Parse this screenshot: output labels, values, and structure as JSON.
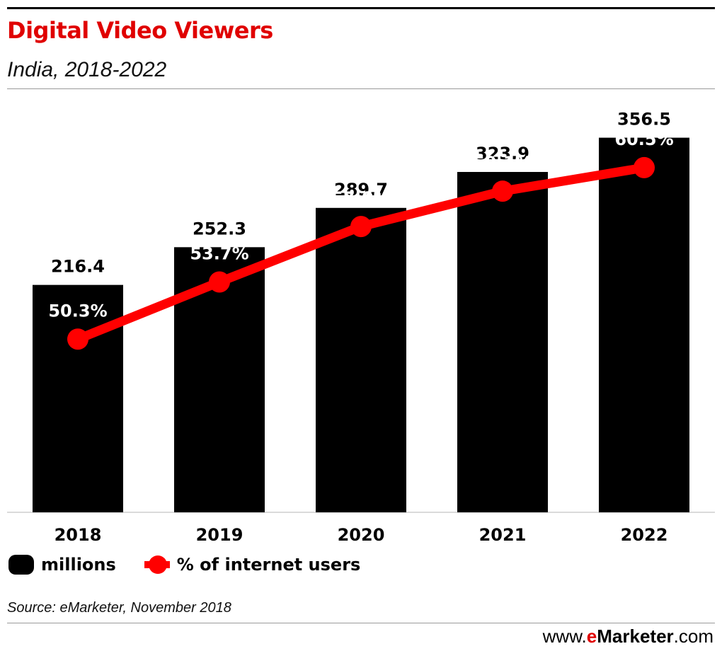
{
  "header": {
    "title": "Digital Video Viewers",
    "subtitle": "India, 2018-2022"
  },
  "chart_data": {
    "type": "bar",
    "categories": [
      "2018",
      "2019",
      "2020",
      "2021",
      "2022"
    ],
    "series": [
      {
        "name": "millions",
        "type": "bar",
        "values": [
          216.4,
          252.3,
          289.7,
          323.9,
          356.5
        ],
        "labels": [
          "216.4",
          "252.3",
          "289.7",
          "323.9",
          "356.5"
        ],
        "color": "#000000"
      },
      {
        "name": "% of internet users",
        "type": "line",
        "values": [
          50.3,
          53.7,
          57.0,
          59.1,
          60.5
        ],
        "labels": [
          "50.3%",
          "53.7%",
          "57.0%",
          "59.1%",
          "60.5%"
        ],
        "color": "#ff0000"
      }
    ],
    "ylim": [
      0,
      400
    ],
    "y2lim": [
      40,
      65
    ],
    "grid": false,
    "legend_position": "bottom-left"
  },
  "legend": {
    "millions_label": "millions",
    "pct_label": "% of internet users"
  },
  "footer": {
    "source": "Source: eMarketer, November 2018",
    "brand_prefix": "www.",
    "brand_e": "e",
    "brand_name": "Marketer",
    "brand_suffix": ".com"
  },
  "colors": {
    "title": "#e00000",
    "bar": "#000000",
    "line": "#ff0000"
  }
}
